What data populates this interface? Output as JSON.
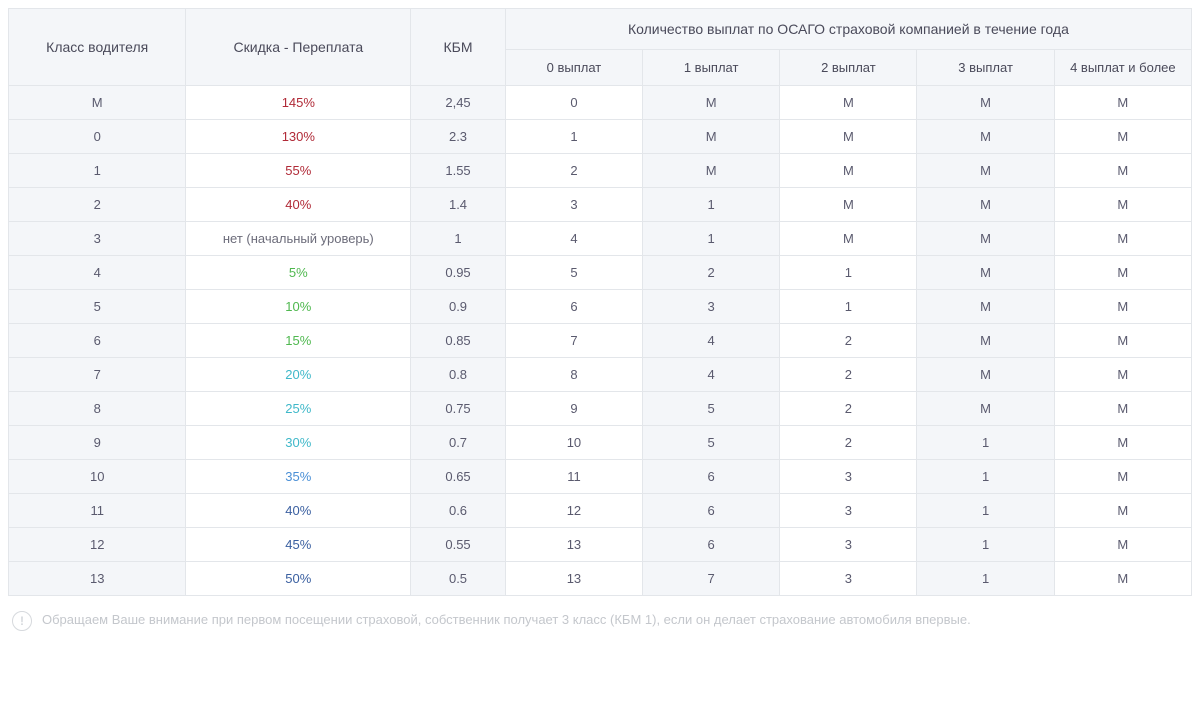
{
  "headers": {
    "driver_class": "Класс водителя",
    "discount": "Скидка - Переплата",
    "kbm": "КБМ",
    "payouts_group": "Количество выплат по ОСАГО страховой компанией в течение года",
    "sub": [
      "0 выплат",
      "1 выплат",
      "2 выплат",
      "3 выплат",
      "4 выплат и более"
    ]
  },
  "discount_colors": {
    "red": "#b02a37",
    "neutral": "#6c6c7a",
    "green": "#4fb84f",
    "teal": "#3fb8c9",
    "blue_light": "#4a8fd6",
    "blue": "#3a5fa0"
  },
  "rows": [
    {
      "cls": "М",
      "discount": "145%",
      "dc": "red",
      "kbm": "2,45",
      "p": [
        "0",
        "М",
        "М",
        "М",
        "М"
      ]
    },
    {
      "cls": "0",
      "discount": "130%",
      "dc": "red",
      "kbm": "2.3",
      "p": [
        "1",
        "М",
        "М",
        "М",
        "М"
      ]
    },
    {
      "cls": "1",
      "discount": "55%",
      "dc": "red",
      "kbm": "1.55",
      "p": [
        "2",
        "М",
        "М",
        "М",
        "М"
      ]
    },
    {
      "cls": "2",
      "discount": "40%",
      "dc": "red",
      "kbm": "1.4",
      "p": [
        "3",
        "1",
        "М",
        "М",
        "М"
      ]
    },
    {
      "cls": "3",
      "discount": "нет (начальный уроверь)",
      "dc": "neutral",
      "kbm": "1",
      "p": [
        "4",
        "1",
        "М",
        "М",
        "М"
      ]
    },
    {
      "cls": "4",
      "discount": "5%",
      "dc": "green",
      "kbm": "0.95",
      "p": [
        "5",
        "2",
        "1",
        "М",
        "М"
      ]
    },
    {
      "cls": "5",
      "discount": "10%",
      "dc": "green",
      "kbm": "0.9",
      "p": [
        "6",
        "3",
        "1",
        "М",
        "М"
      ]
    },
    {
      "cls": "6",
      "discount": "15%",
      "dc": "green",
      "kbm": "0.85",
      "p": [
        "7",
        "4",
        "2",
        "М",
        "М"
      ]
    },
    {
      "cls": "7",
      "discount": "20%",
      "dc": "teal",
      "kbm": "0.8",
      "p": [
        "8",
        "4",
        "2",
        "М",
        "М"
      ]
    },
    {
      "cls": "8",
      "discount": "25%",
      "dc": "teal",
      "kbm": "0.75",
      "p": [
        "9",
        "5",
        "2",
        "М",
        "М"
      ]
    },
    {
      "cls": "9",
      "discount": "30%",
      "dc": "teal",
      "kbm": "0.7",
      "p": [
        "10",
        "5",
        "2",
        "1",
        "М"
      ]
    },
    {
      "cls": "10",
      "discount": "35%",
      "dc": "blue_light",
      "kbm": "0.65",
      "p": [
        "11",
        "6",
        "3",
        "1",
        "М"
      ]
    },
    {
      "cls": "11",
      "discount": "40%",
      "dc": "blue",
      "kbm": "0.6",
      "p": [
        "12",
        "6",
        "3",
        "1",
        "М"
      ]
    },
    {
      "cls": "12",
      "discount": "45%",
      "dc": "blue",
      "kbm": "0.55",
      "p": [
        "13",
        "6",
        "3",
        "1",
        "М"
      ]
    },
    {
      "cls": "13",
      "discount": "50%",
      "dc": "blue",
      "kbm": "0.5",
      "p": [
        "13",
        "7",
        "3",
        "1",
        "М"
      ]
    }
  ],
  "note": {
    "icon": "!",
    "text": "Обращаем Ваше внимание при первом посещении страховой, собственник получает 3 класс (КБМ 1), если он делает страхование автомобиля впервые."
  },
  "col_widths": {
    "driver_class": "15%",
    "discount": "19%",
    "kbm": "8%",
    "payout_sub": "11.6%"
  },
  "styling": {
    "header_bg": "#f4f6f9",
    "cell_bg": "#ffffff",
    "shaded_bg": "#f4f6f9",
    "border_color": "#e3e6ea",
    "text_color": "#5a5a6e",
    "note_color": "#c4c7cc",
    "font_size_body": 13,
    "font_size_header": 14
  }
}
